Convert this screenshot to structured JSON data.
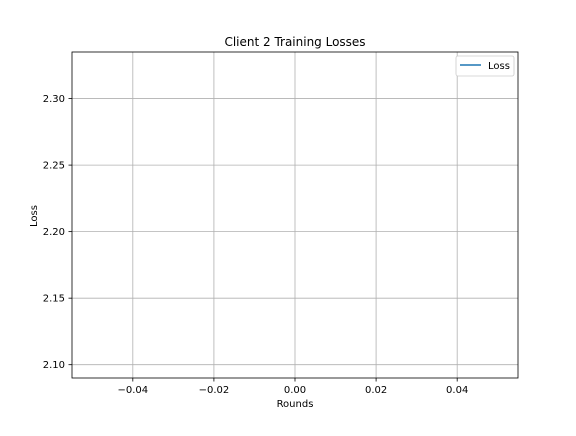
{
  "chart_data": {
    "type": "line",
    "title": "Client 2 Training Losses",
    "xlabel": "Rounds",
    "ylabel": "Loss",
    "xlim": [
      -0.055,
      0.055
    ],
    "ylim": [
      2.09,
      2.335
    ],
    "xticks": [
      -0.04,
      -0.02,
      0.0,
      0.02,
      0.04
    ],
    "xtick_labels": [
      "−0.04",
      "−0.02",
      "0.00",
      "0.02",
      "0.04"
    ],
    "yticks": [
      2.1,
      2.15,
      2.2,
      2.25,
      2.3
    ],
    "ytick_labels": [
      "2.10",
      "2.15",
      "2.20",
      "2.25",
      "2.30"
    ],
    "grid": true,
    "legend_position": "top-right",
    "series": [
      {
        "name": "Loss",
        "color": "#1f77b4",
        "x": [],
        "y": []
      }
    ]
  }
}
